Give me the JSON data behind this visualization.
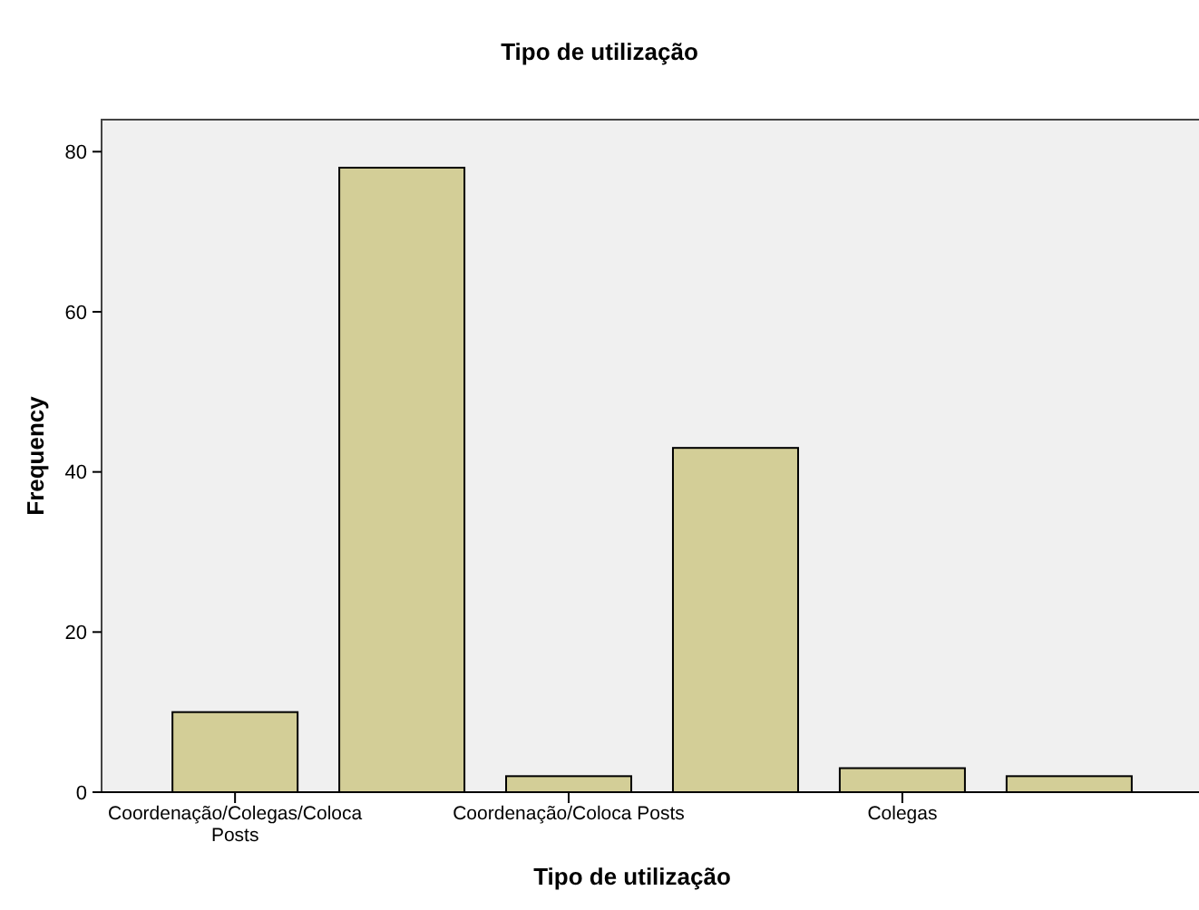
{
  "chart_data": {
    "type": "bar",
    "title": "Tipo de utilização",
    "xlabel": "Tipo de utilização",
    "ylabel": "Frequency",
    "categories": [
      "Coordenação/Colegas/Coloca Posts",
      null,
      "Coordenação/Coloca Posts",
      null,
      "Colegas",
      null
    ],
    "values": [
      10,
      78,
      2,
      43,
      3,
      2
    ],
    "color": "#d3ce97",
    "ylim": [
      0,
      84
    ],
    "yticks": [
      0,
      20,
      40,
      60,
      80
    ]
  }
}
